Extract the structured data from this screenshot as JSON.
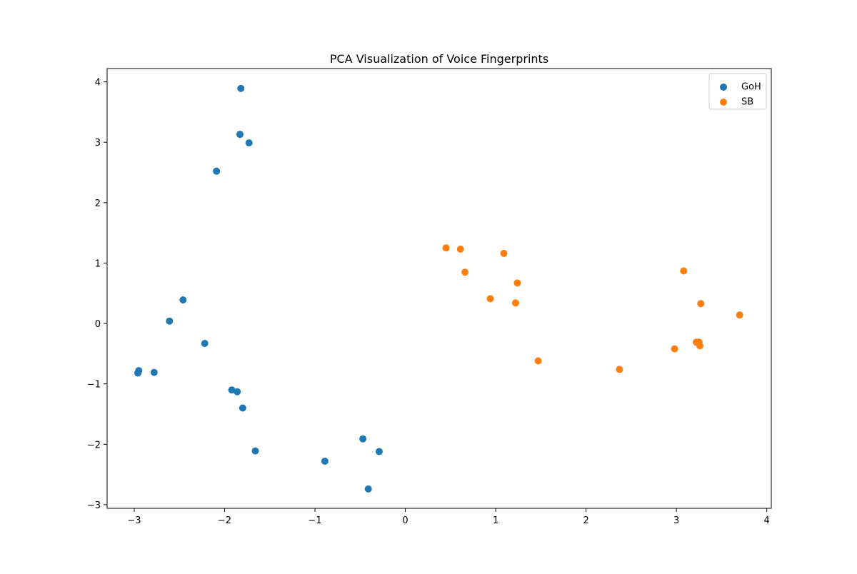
{
  "chart_data": {
    "type": "scatter",
    "title": "PCA Visualization of Voice Fingerprints",
    "xlabel": "",
    "ylabel": "",
    "xlim": [
      -3.3,
      4.05
    ],
    "ylim": [
      -3.06,
      4.22
    ],
    "x_ticks": [
      -3,
      -2,
      -1,
      0,
      1,
      2,
      3,
      4
    ],
    "y_ticks": [
      -3,
      -2,
      -1,
      0,
      1,
      2,
      3,
      4
    ],
    "x_tick_labels": [
      "−3",
      "−2",
      "−1",
      "0",
      "1",
      "2",
      "3",
      "4"
    ],
    "y_tick_labels": [
      "−3",
      "−2",
      "−1",
      "0",
      "1",
      "2",
      "3",
      "4"
    ],
    "grid": false,
    "legend_position": "top-right",
    "series": [
      {
        "name": "GoH",
        "color": "#1f77b4",
        "points": [
          [
            -1.82,
            3.89
          ],
          [
            -1.83,
            3.13
          ],
          [
            -1.73,
            2.99
          ],
          [
            -2.09,
            2.52
          ],
          [
            -2.46,
            0.39
          ],
          [
            -2.61,
            0.04
          ],
          [
            -2.22,
            -0.33
          ],
          [
            -2.95,
            -0.78
          ],
          [
            -2.96,
            -0.82
          ],
          [
            -2.78,
            -0.81
          ],
          [
            -1.92,
            -1.1
          ],
          [
            -1.86,
            -1.13
          ],
          [
            -1.8,
            -1.4
          ],
          [
            -1.66,
            -2.11
          ],
          [
            -0.47,
            -1.91
          ],
          [
            -0.29,
            -2.12
          ],
          [
            -0.89,
            -2.28
          ],
          [
            -0.41,
            -2.74
          ]
        ]
      },
      {
        "name": "SB",
        "color": "#ff7f0e",
        "points": [
          [
            0.45,
            1.25
          ],
          [
            0.61,
            1.23
          ],
          [
            1.09,
            1.16
          ],
          [
            0.66,
            0.85
          ],
          [
            1.24,
            0.67
          ],
          [
            0.94,
            0.41
          ],
          [
            1.22,
            0.34
          ],
          [
            1.47,
            -0.62
          ],
          [
            2.37,
            -0.76
          ],
          [
            3.08,
            0.87
          ],
          [
            3.27,
            0.33
          ],
          [
            3.7,
            0.14
          ],
          [
            3.22,
            -0.31
          ],
          [
            3.25,
            -0.31
          ],
          [
            3.26,
            -0.37
          ],
          [
            2.98,
            -0.42
          ]
        ]
      }
    ]
  }
}
